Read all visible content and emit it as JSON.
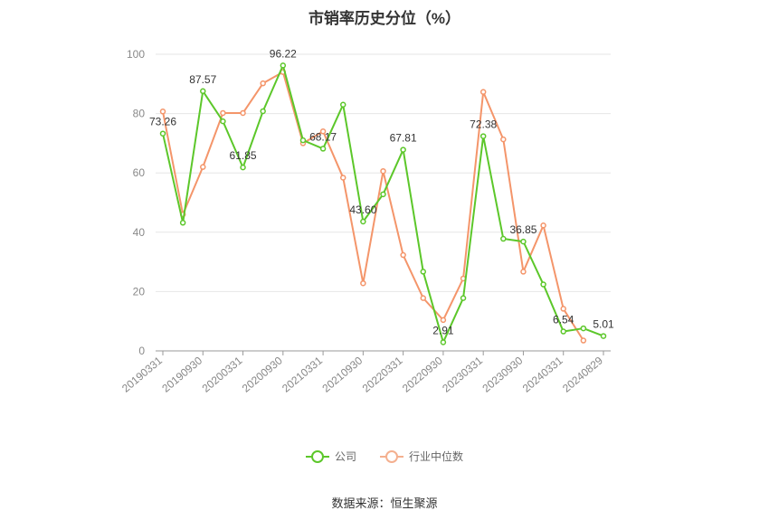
{
  "chart_data": {
    "type": "line",
    "title": "市销率历史分位（%）",
    "ylim": [
      0,
      100
    ],
    "yticks": [
      0,
      20,
      40,
      60,
      80,
      100
    ],
    "x": [
      "20190331",
      "20190630",
      "20190930",
      "20191231",
      "20200331",
      "20200630",
      "20200930",
      "20201231",
      "20210331",
      "20210630",
      "20210930",
      "20211231",
      "20220331",
      "20220630",
      "20220930",
      "20221231",
      "20230331",
      "20230630",
      "20230930",
      "20231231",
      "20240331",
      "20240630",
      "20240829"
    ],
    "xtick_labels": [
      "20190331",
      "20190930",
      "20200331",
      "20200930",
      "20210331",
      "20210930",
      "20220331",
      "20220930",
      "20230331",
      "20230930",
      "20240331",
      "20240829"
    ],
    "series": [
      {
        "name": "公司",
        "color": "#5cc72a",
        "values": [
          73.26,
          43.2,
          87.57,
          77.4,
          61.85,
          80.8,
          96.22,
          71.0,
          68.17,
          83.0,
          43.6,
          52.8,
          67.81,
          26.7,
          2.91,
          17.8,
          72.38,
          37.8,
          36.85,
          22.4,
          6.54,
          7.6,
          5.01
        ],
        "labels": {
          "0": "73.26",
          "2": "87.57",
          "4": "61.85",
          "6": "96.22",
          "8": "68.17",
          "10": "43.60",
          "12": "67.81",
          "14": "2.91",
          "16": "72.38",
          "18": "36.85",
          "20": "6.54",
          "22": "5.01"
        }
      },
      {
        "name": "行业中位数",
        "color": "#f4956a",
        "values": [
          80.7,
          46.0,
          62.0,
          80.2,
          80.2,
          90.2,
          94.0,
          70.0,
          74.0,
          58.4,
          22.8,
          60.6,
          32.3,
          17.8,
          10.4,
          24.4,
          87.3,
          71.3,
          26.7,
          42.3,
          14.2,
          3.5,
          null
        ]
      }
    ]
  },
  "legend": [
    {
      "label": "公司",
      "color": "#5cc72a"
    },
    {
      "label": "行业中位数",
      "color": "#f4b08f"
    }
  ],
  "source": "数据来源：恒生聚源"
}
